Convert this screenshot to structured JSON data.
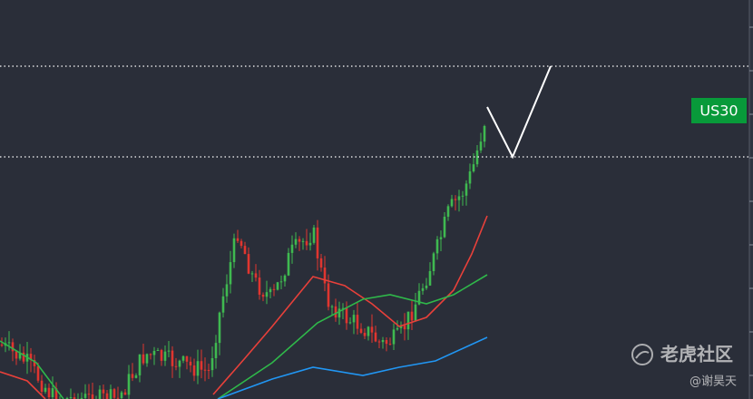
{
  "chart": {
    "symbol_label": "US30"
  },
  "watermark": {
    "brand": "老虎社区",
    "author": "@谢昊天"
  }
}
